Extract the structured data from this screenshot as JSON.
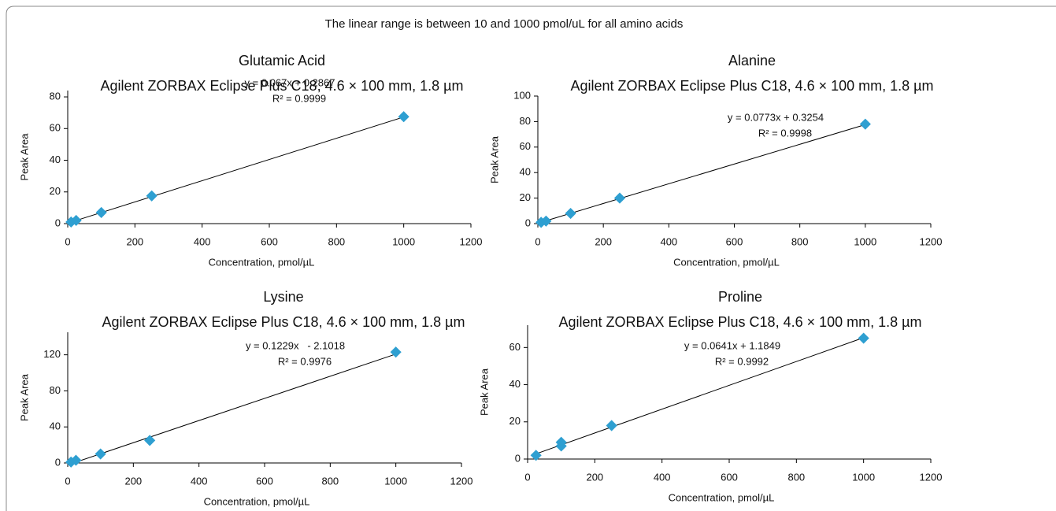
{
  "title": "The linear range is between 10 and 1000 pmol/uL for all amino acids",
  "chart_data": [
    {
      "type": "scatter",
      "title": "Glutamic Acid",
      "subtitle": "Agilent ZORBAX Eclipse Plus C18, 4.6 × 100 mm, 1.8 µm",
      "x_label": "Concentration, pmol/µL",
      "y_label": "Peak Area",
      "annotations": [
        "y = 0.067x + 0.2867",
        "R² = 0.9999"
      ],
      "trendline": {
        "slope": 0.067,
        "intercept": 0.2867
      },
      "x": [
        10,
        25,
        100,
        250,
        1000
      ],
      "series": [
        {
          "color": "#2e9fd1",
          "values": [
            1,
            2,
            7,
            17.5,
            67.5
          ]
        }
      ],
      "xlim": [
        0,
        1200
      ],
      "xticks": [
        0,
        200,
        400,
        600,
        800,
        1000,
        1200
      ],
      "ylim": [
        0,
        84
      ],
      "yticks": [
        0,
        20,
        40,
        60,
        80
      ]
    },
    {
      "type": "scatter",
      "title": "Alanine",
      "subtitle": "Agilent ZORBAX Eclipse Plus C18, 4.6 × 100 mm, 1.8 µm",
      "x_label": "Concentration, pmol/µL",
      "y_label": "Peak Area",
      "annotations": [
        "y = 0.0773x + 0.3254",
        "R² = 0.9998"
      ],
      "trendline": {
        "slope": 0.0773,
        "intercept": 0.3254
      },
      "x": [
        10,
        25,
        100,
        250,
        1000
      ],
      "series": [
        {
          "color": "#2e9fd1",
          "values": [
            1,
            2,
            8,
            20,
            78
          ]
        }
      ],
      "xlim": [
        0,
        1200
      ],
      "xticks": [
        0,
        200,
        400,
        600,
        800,
        1000,
        1200
      ],
      "ylim": [
        0,
        100
      ],
      "yticks": [
        0,
        20,
        40,
        60,
        80,
        100
      ]
    },
    {
      "type": "scatter",
      "title": "Lysine",
      "subtitle": "Agilent ZORBAX Eclipse Plus C18, 4.6 × 100 mm, 1.8 µm",
      "x_label": "Concentration, pmol/µL",
      "y_label": "Peak Area",
      "annotations": [
        "y = 0.1229x   - 2.1018",
        "R² = 0.9976"
      ],
      "trendline": {
        "slope": 0.1229,
        "intercept": -2.1018
      },
      "x": [
        10,
        25,
        100,
        250,
        1000
      ],
      "series": [
        {
          "color": "#2e9fd1",
          "values": [
            1,
            3,
            10,
            25,
            123
          ]
        }
      ],
      "xlim": [
        0,
        1200
      ],
      "xticks": [
        0,
        200,
        400,
        600,
        800,
        1000,
        1200
      ],
      "ylim": [
        0,
        145
      ],
      "yticks": [
        0,
        40,
        80,
        120
      ]
    },
    {
      "type": "scatter",
      "title": "Proline",
      "subtitle": "Agilent ZORBAX Eclipse Plus C18, 4.6 × 100 mm, 1.8 µm",
      "x_label": "Concentration, pmol/µL",
      "y_label": "Peak Area",
      "annotations": [
        "y = 0.0641x + 1.1849",
        "R² = 0.9992"
      ],
      "trendline": {
        "slope": 0.0641,
        "intercept": 1.1849
      },
      "x": [
        25,
        100,
        100,
        250,
        1000
      ],
      "series": [
        {
          "color": "#2e9fd1",
          "values": [
            2,
            7,
            9,
            18,
            65
          ]
        }
      ],
      "xlim": [
        0,
        1200
      ],
      "xticks": [
        0,
        200,
        400,
        600,
        800,
        1000,
        1200
      ],
      "ylim": [
        0,
        72
      ],
      "yticks": [
        0,
        20,
        40,
        60
      ]
    }
  ]
}
